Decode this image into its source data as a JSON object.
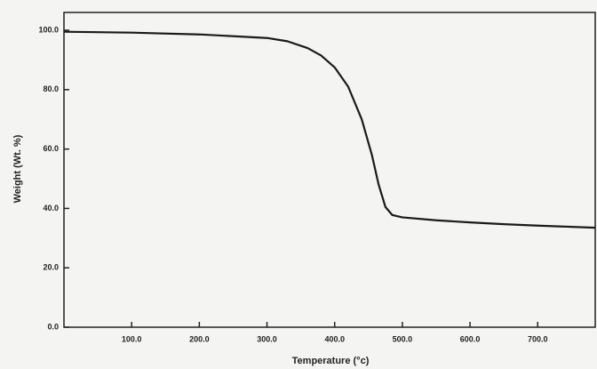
{
  "chart_data": {
    "type": "line",
    "xlabel": "Temperature (°c)",
    "ylabel": "Weight (Wt. %)",
    "x": [
      0,
      100,
      200,
      300,
      330,
      360,
      380,
      400,
      420,
      440,
      455,
      465,
      475,
      485,
      500,
      550,
      600,
      650,
      700,
      750,
      785
    ],
    "series": [
      {
        "name": "Weight",
        "color": "#1a1a1a",
        "values": [
          99.5,
          99.2,
          98.6,
          97.4,
          96.3,
          94.0,
          91.5,
          87.5,
          81.0,
          70.0,
          58.0,
          48.0,
          40.5,
          37.8,
          37.0,
          36.0,
          35.3,
          34.7,
          34.2,
          33.8,
          33.5
        ]
      }
    ],
    "xlim": [
      0,
      785
    ],
    "xticks": [
      {
        "value": 100,
        "label": "100.0"
      },
      {
        "value": 200,
        "label": "200.0"
      },
      {
        "value": 300,
        "label": "300.0"
      },
      {
        "value": 400,
        "label": "400.0"
      },
      {
        "value": 500,
        "label": "500.0"
      },
      {
        "value": 600,
        "label": "600.0"
      },
      {
        "value": 700,
        "label": "700.0"
      }
    ],
    "ylim": [
      0,
      106
    ],
    "yticks": [
      {
        "value": 0,
        "label": "0.0"
      },
      {
        "value": 20,
        "label": "20.0"
      },
      {
        "value": 40,
        "label": "40.0"
      },
      {
        "value": 60,
        "label": "60.0"
      },
      {
        "value": 80,
        "label": "80.0"
      },
      {
        "value": 100,
        "label": "100.0"
      }
    ],
    "grid": false
  }
}
